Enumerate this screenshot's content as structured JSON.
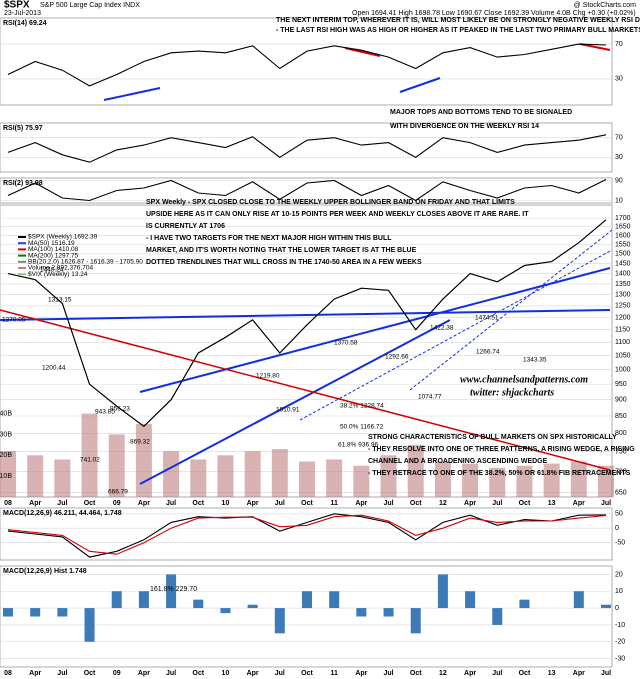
{
  "header": {
    "symbol": "$SPX",
    "name": "S&P 500 Large Cap Index INDX",
    "date": "23-Jul-2013",
    "quote": "Open 1694.41  High 1698.78  Low 1690.67  Close 1692.39  Volume 4.0B  Chg +0.30 (+0.02%)",
    "source": "@ StockCharts.com"
  },
  "chart_data": [
    {
      "type": "line",
      "title": "RSI(14) 69.24",
      "color": "#000000",
      "ylim": [
        0,
        100
      ],
      "yticks": [
        30,
        70
      ],
      "values": [
        35,
        50,
        40,
        22,
        35,
        50,
        60,
        62,
        60,
        68,
        42,
        62,
        68,
        63,
        55,
        42,
        60,
        66,
        55,
        58,
        64,
        70,
        69
      ],
      "annotations": [
        "THE NEXT INTERIM TOP, WHEREVER IT IS, WILL MOST LIKELY BE ON STRONGLY NEGATIVE WEEKLY RSI DIVERGENCE",
        "- THE LAST RSI HIGH WAS AS HIGH OR HIGHER AS IT PEAKED IN THE LAST TWO PRIMARY BULL MARKETS",
        "MAJOR TOPS AND BOTTOMS TEND TO BE SIGNALED",
        "WITH DIVERGENCE ON THE WEEKLY RSI 14"
      ]
    },
    {
      "type": "line",
      "title": "RSI(5) 75.97",
      "color": "#000000",
      "ylim": [
        0,
        100
      ],
      "yticks": [
        30,
        70
      ],
      "values": [
        40,
        60,
        35,
        20,
        45,
        55,
        70,
        60,
        50,
        72,
        30,
        65,
        70,
        55,
        60,
        30,
        70,
        60,
        40,
        55,
        60,
        65,
        76
      ]
    },
    {
      "type": "line",
      "title": "RSI(2) 93.98",
      "color": "#000000",
      "ylim": [
        0,
        100
      ],
      "yticks": [
        10,
        90
      ],
      "values": [
        30,
        80,
        20,
        10,
        50,
        60,
        90,
        40,
        30,
        85,
        15,
        80,
        90,
        30,
        70,
        10,
        85,
        50,
        20,
        60,
        70,
        40,
        94
      ]
    },
    {
      "type": "price",
      "log_scale": true,
      "ylim": [
        640,
        1780
      ],
      "yticks": [
        650,
        700,
        750,
        800,
        850,
        900,
        950,
        1000,
        1050,
        1100,
        1150,
        1200,
        1250,
        1300,
        1350,
        1400,
        1450,
        1500,
        1550,
        1600,
        1650,
        1700
      ],
      "y2lim": [
        0,
        140
      ],
      "y2ticks": [
        {
          "value": 10,
          "label": "10B"
        },
        {
          "value": 20,
          "label": "20B"
        },
        {
          "value": 30,
          "label": "30B"
        },
        {
          "value": 40,
          "label": "40B"
        }
      ],
      "categories": [
        "08",
        "Apr",
        "Jul",
        "Oct",
        "09",
        "Apr",
        "Jul",
        "Oct",
        "10",
        "Apr",
        "Jul",
        "Oct",
        "11",
        "Apr",
        "Jul",
        "Oct",
        "12",
        "Apr",
        "Jul",
        "Oct",
        "13",
        "Apr",
        "Jul"
      ],
      "series": [
        {
          "name": "$SPX (Weekly) 1692.39",
          "color": "#000000",
          "values": [
            1400,
            1370,
            1260,
            950,
            880,
            820,
            900,
            1060,
            1120,
            1190,
            1060,
            1170,
            1280,
            1330,
            1320,
            1150,
            1280,
            1400,
            1360,
            1440,
            1460,
            1560,
            1690
          ]
        },
        {
          "name": "MA(50) 1516.19",
          "color": "#1f3fff"
        },
        {
          "name": "MA(100) 1410.08",
          "color": "#d40000"
        },
        {
          "name": "MA(200) 1297.75",
          "color": "#008000"
        },
        {
          "name": "BB(20,2.0) 1626.87 - 1616.39 - 1705.90",
          "color": "#808080"
        },
        {
          "name": "Volume 2,892,376,704",
          "color": "#c08080",
          "axis": "y2",
          "values": [
            22,
            20,
            18,
            40,
            30,
            35,
            22,
            18,
            20,
            22,
            23,
            17,
            18,
            15,
            20,
            25,
            17,
            16,
            14,
            15,
            16,
            17,
            15
          ]
        },
        {
          "name": "$VIX (Weekly) 13.24",
          "color": "#8fc98f"
        }
      ],
      "price_labels": [
        "1440.24",
        "1313.15",
        "1270.05",
        "1200.44",
        "943.85",
        "741.02",
        "666.79",
        "869.32",
        "956.23",
        "1219.80",
        "1010.91",
        "1370.58",
        "1292.66",
        "1074.77",
        "1422.38",
        "1474.51",
        "1266.74",
        "1343.35",
        "38.2% 1228.74",
        "50.0% 1166.72",
        "61.8% 936.96"
      ],
      "annotations": [
        "SPX Weekly - SPX CLOSED CLOSE TO THE WEEKLY UPPER BOLLINGER BAND ON FRIDAY AND THAT LIMITS",
        "UPSIDE HERE AS IT CAN ONLY RISE AT 10-15 POINTS PER WEEK AND WEEKLY CLOSES ABOVE IT ARE RARE. IT",
        "IS CURRENTLY AT 1706",
        "- I HAVE TWO TARGETS FOR THE NEXT MAJOR HIGH WITHIN THIS BULL",
        "MARKET, AND IT'S WORTH NOTING THAT THE LOWER TARGET IS AT THE BLUE",
        "DOTTED TRENDLINES THAT WILL CROSS IN THE 1740-50 AREA IN A FEW WEEKS",
        "www.channelsandpatterns.com",
        "twitter: shjackcharts",
        "STRONG CHARACTERISTICS OF BULL MARKETS ON SPX HISTORICALLY",
        "- THEY RESOLVE INTO ONE OF THREE PATTERNS, A RISING WEDGE, A RISING",
        "CHANNEL AND A BROADENING ASCENDING WEDGE",
        "- THEY RETRACE TO ONE OF THE 38.2%, 50% OR 61.8% FIB RETRACEMENTS"
      ]
    },
    {
      "type": "line",
      "title": "MACD(12,26,9) 46.211, 44.464, 1.748",
      "ylim": [
        -110,
        70
      ],
      "yticks": [
        -50,
        0,
        50
      ],
      "series": [
        {
          "color": "#000000",
          "values": [
            -10,
            -20,
            -30,
            -100,
            -80,
            -40,
            20,
            40,
            35,
            40,
            -10,
            20,
            50,
            40,
            20,
            -40,
            20,
            45,
            10,
            30,
            25,
            45,
            46
          ]
        },
        {
          "color": "#d40000",
          "values": [
            -5,
            -15,
            -25,
            -80,
            -90,
            -50,
            0,
            35,
            38,
            38,
            5,
            10,
            40,
            45,
            25,
            -25,
            0,
            35,
            20,
            25,
            25,
            35,
            44
          ]
        }
      ]
    },
    {
      "type": "bar",
      "title": "MACD(12,26,9) Hist 1.748",
      "color": "#3d7ab8",
      "ylim": [
        -35,
        25
      ],
      "yticks": [
        -30,
        -20,
        -10,
        0,
        10,
        20
      ],
      "categories": [
        "08",
        "Apr",
        "Jul",
        "Oct",
        "09",
        "Apr",
        "Jul",
        "Oct",
        "10",
        "Apr",
        "Jul",
        "Oct",
        "11",
        "Apr",
        "Jul",
        "Oct",
        "12",
        "Apr",
        "Jul",
        "Oct",
        "13",
        "Apr",
        "Jul"
      ],
      "values": [
        -5,
        -5,
        -5,
        -20,
        10,
        10,
        20,
        5,
        -3,
        2,
        -15,
        10,
        10,
        -5,
        -5,
        -15,
        20,
        10,
        -10,
        5,
        0,
        10,
        2
      ],
      "annotations": [
        "161.8% 229.70"
      ]
    }
  ]
}
